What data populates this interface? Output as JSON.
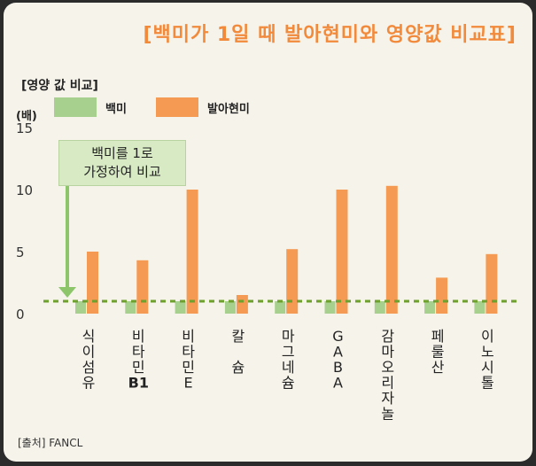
{
  "title": "[백미가 1일 때 발아현미와 영양값 비교표]",
  "section_label": "[영양 값 비교]",
  "source": "[출처] FANCL",
  "callout": {
    "line1": "백미를 1로",
    "line2": "가정하여 비교"
  },
  "colors": {
    "white_rice": "#a7cf8d",
    "brown_rice": "#f59a52",
    "baseline": "#6da02c",
    "arrow": "#8cc56a"
  },
  "chart_data": {
    "type": "bar",
    "ylabel": "(배)",
    "ylim": [
      0,
      15
    ],
    "yticks": [
      0,
      5,
      10,
      15
    ],
    "grid": false,
    "legend_position": "top",
    "categories": [
      [
        "식",
        "이",
        "섬",
        "유"
      ],
      [
        "비",
        "타",
        "민",
        "B1"
      ],
      [
        "비",
        "타",
        "민",
        "E"
      ],
      [
        "칼",
        "",
        "슘"
      ],
      [
        "마",
        "그",
        "네",
        "슘"
      ],
      [
        "G",
        "A",
        "B",
        "A"
      ],
      [
        "감",
        "마",
        "오",
        "리",
        "자",
        "놀"
      ],
      [
        "페",
        "룰",
        "산"
      ],
      [
        "이",
        "노",
        "시",
        "톨"
      ]
    ],
    "series": [
      {
        "name": "백미",
        "values": [
          1,
          1,
          1,
          1,
          1,
          1,
          1,
          1,
          1
        ]
      },
      {
        "name": "발아현미",
        "values": [
          5,
          4.3,
          10,
          1.5,
          5.2,
          10,
          10.3,
          2.9,
          4.8
        ]
      }
    ]
  }
}
